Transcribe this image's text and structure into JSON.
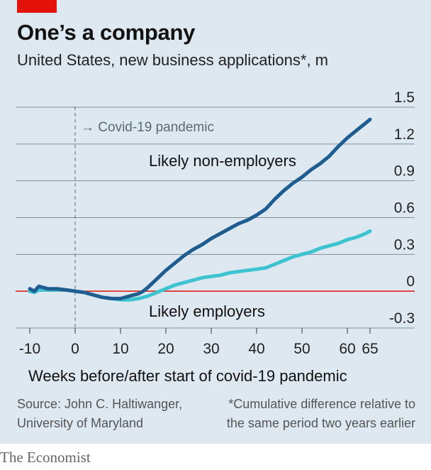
{
  "header": {
    "title": "One’s a company",
    "subtitle": "United States, new business applications*, m"
  },
  "chart_data": {
    "type": "line",
    "title": "One’s a company",
    "subtitle": "United States, new business applications*, m",
    "xlabel": "Weeks before/after start of covid-19 pandemic",
    "ylabel": "",
    "xlim": [
      -10,
      65
    ],
    "ylim": [
      -0.3,
      1.5
    ],
    "x_ticks": [
      -10,
      0,
      10,
      20,
      30,
      40,
      50,
      60,
      65
    ],
    "x_tick_labels": [
      "-10",
      "0",
      "10",
      "20",
      "30",
      "40",
      "50",
      "60",
      "65"
    ],
    "y_ticks": [
      -0.3,
      0,
      0.3,
      0.6,
      0.9,
      1.2,
      1.5
    ],
    "y_tick_labels": [
      "-0.3",
      "0",
      "0.3",
      "0.6",
      "0.9",
      "1.2",
      "1.5"
    ],
    "y_axis_side": "right",
    "grid": "horizontal",
    "zero_line_color": "#e3120b",
    "annotation": {
      "x": 0,
      "label": "→ Covid-19 pandemic"
    },
    "series": [
      {
        "name": "Likely non-employers",
        "color": "#1f5c8f",
        "x": [
          -10,
          -9,
          -8,
          -7,
          -6,
          -5,
          -4,
          -2,
          0,
          2,
          4,
          6,
          8,
          10,
          12,
          14,
          15,
          16,
          18,
          20,
          22,
          24,
          26,
          28,
          30,
          32,
          34,
          36,
          38,
          40,
          42,
          44,
          46,
          48,
          50,
          52,
          54,
          56,
          58,
          60,
          62,
          64,
          65
        ],
        "y": [
          0.02,
          0.0,
          0.04,
          0.03,
          0.02,
          0.02,
          0.02,
          0.01,
          0.0,
          -0.01,
          -0.03,
          -0.05,
          -0.06,
          -0.06,
          -0.04,
          -0.02,
          0.0,
          0.03,
          0.1,
          0.17,
          0.23,
          0.29,
          0.34,
          0.38,
          0.43,
          0.47,
          0.51,
          0.55,
          0.58,
          0.62,
          0.67,
          0.75,
          0.82,
          0.88,
          0.93,
          0.99,
          1.04,
          1.1,
          1.18,
          1.25,
          1.31,
          1.37,
          1.4
        ]
      },
      {
        "name": "Likely employers",
        "color": "#3ec3d0",
        "x": [
          -10,
          -9,
          -8,
          -7,
          -6,
          -5,
          -4,
          -2,
          0,
          2,
          4,
          6,
          8,
          10,
          12,
          14,
          16,
          18,
          20,
          22,
          24,
          26,
          28,
          30,
          32,
          34,
          36,
          38,
          40,
          42,
          44,
          46,
          48,
          50,
          52,
          54,
          56,
          58,
          60,
          62,
          64,
          65
        ],
        "y": [
          0.0,
          -0.01,
          0.01,
          0.01,
          0.01,
          0.01,
          0.01,
          0.01,
          0.0,
          -0.01,
          -0.03,
          -0.05,
          -0.06,
          -0.07,
          -0.07,
          -0.06,
          -0.04,
          -0.01,
          0.02,
          0.05,
          0.07,
          0.09,
          0.11,
          0.12,
          0.13,
          0.15,
          0.16,
          0.17,
          0.18,
          0.19,
          0.22,
          0.25,
          0.28,
          0.3,
          0.32,
          0.35,
          0.37,
          0.39,
          0.42,
          0.44,
          0.47,
          0.49
        ]
      }
    ]
  },
  "labels": {
    "non_employers": "Likely non-employers",
    "employers": "Likely employers"
  },
  "footer": {
    "source_line1": "Source: John C. Haltiwanger,",
    "source_line2": "University of Maryland",
    "note_line1": "*Cumulative difference relative to",
    "note_line2": "the same period two years earlier",
    "brand": "The Economist"
  }
}
